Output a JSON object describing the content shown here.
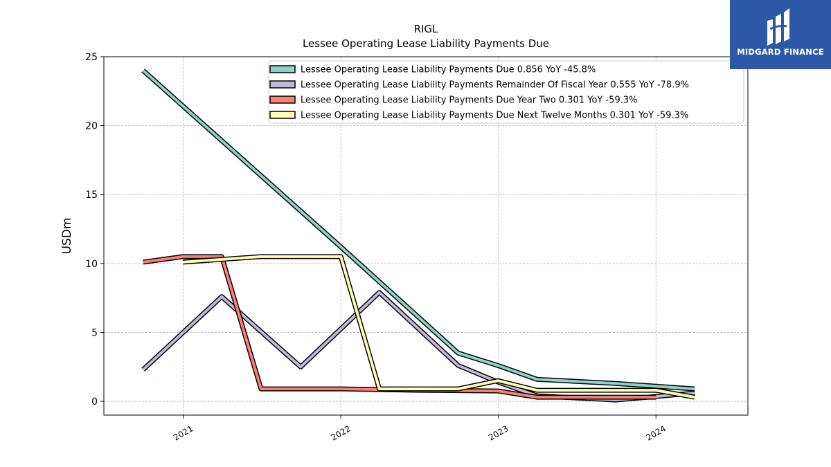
{
  "logo": {
    "text": "MIDGARD FINANCE",
    "bg": "#2d58a8"
  },
  "chart_data": {
    "type": "line",
    "title": "RIGL",
    "subtitle": "Lessee Operating Lease Liability Payments Due",
    "ylabel": "USDm",
    "xlabel": "",
    "ylim": [
      -1,
      25
    ],
    "yticks": [
      0,
      5,
      10,
      15,
      20,
      25
    ],
    "xlim": [
      "2020-07-01",
      "2024-08-01"
    ],
    "xticks": [
      {
        "date": "2021-01-01",
        "label": "2021"
      },
      {
        "date": "2022-01-01",
        "label": "2022"
      },
      {
        "date": "2023-01-01",
        "label": "2023"
      },
      {
        "date": "2024-01-01",
        "label": "2024"
      }
    ],
    "grid": true,
    "legend_position": "top-right",
    "series": [
      {
        "name": "Lessee Operating Lease Liability Payments Due  0.856 YoY -45.8%",
        "color": "#8dd3c7",
        "points": [
          [
            "2020-09-30",
            24.0
          ],
          [
            "2022-01-01",
            11.2
          ],
          [
            "2022-09-30",
            3.5
          ],
          [
            "2022-12-31",
            2.6
          ],
          [
            "2023-03-31",
            1.6
          ],
          [
            "2023-09-30",
            1.3
          ],
          [
            "2024-03-31",
            0.9
          ]
        ]
      },
      {
        "name": "Lessee Operating Lease Liability Payments Remainder Of Fiscal Year  0.555 YoY -78.9%",
        "color": "#bebada",
        "points": [
          [
            "2020-09-30",
            2.3
          ],
          [
            "2021-03-31",
            7.6
          ],
          [
            "2021-09-30",
            2.5
          ],
          [
            "2022-03-31",
            7.9
          ],
          [
            "2022-09-30",
            2.6
          ],
          [
            "2022-12-31",
            1.4
          ],
          [
            "2023-03-31",
            0.4
          ],
          [
            "2023-09-30",
            0.1
          ],
          [
            "2024-03-31",
            0.6
          ]
        ]
      },
      {
        "name": "Lessee Operating Lease Liability Payments Due Year Two  0.301 YoY -59.3%",
        "color": "#fb8072",
        "points": [
          [
            "2020-09-30",
            10.1
          ],
          [
            "2020-12-31",
            10.5
          ],
          [
            "2021-03-31",
            10.5
          ],
          [
            "2021-06-30",
            0.9
          ],
          [
            "2022-01-01",
            0.9
          ],
          [
            "2022-06-30",
            0.8
          ],
          [
            "2022-12-31",
            0.75
          ],
          [
            "2023-03-31",
            0.3
          ],
          [
            "2024-01-01",
            0.3
          ]
        ]
      },
      {
        "name": "Lessee Operating Lease Liability Payments Due Next Twelve Months  0.301 YoY -59.3%",
        "color": "#ffffb3",
        "points": [
          [
            "2020-12-31",
            10.1
          ],
          [
            "2021-06-30",
            10.5
          ],
          [
            "2022-01-01",
            10.5
          ],
          [
            "2022-03-31",
            0.9
          ],
          [
            "2022-09-30",
            0.9
          ],
          [
            "2022-12-31",
            1.5
          ],
          [
            "2023-03-31",
            0.8
          ],
          [
            "2024-01-01",
            0.8
          ],
          [
            "2024-03-31",
            0.3
          ]
        ]
      }
    ]
  }
}
